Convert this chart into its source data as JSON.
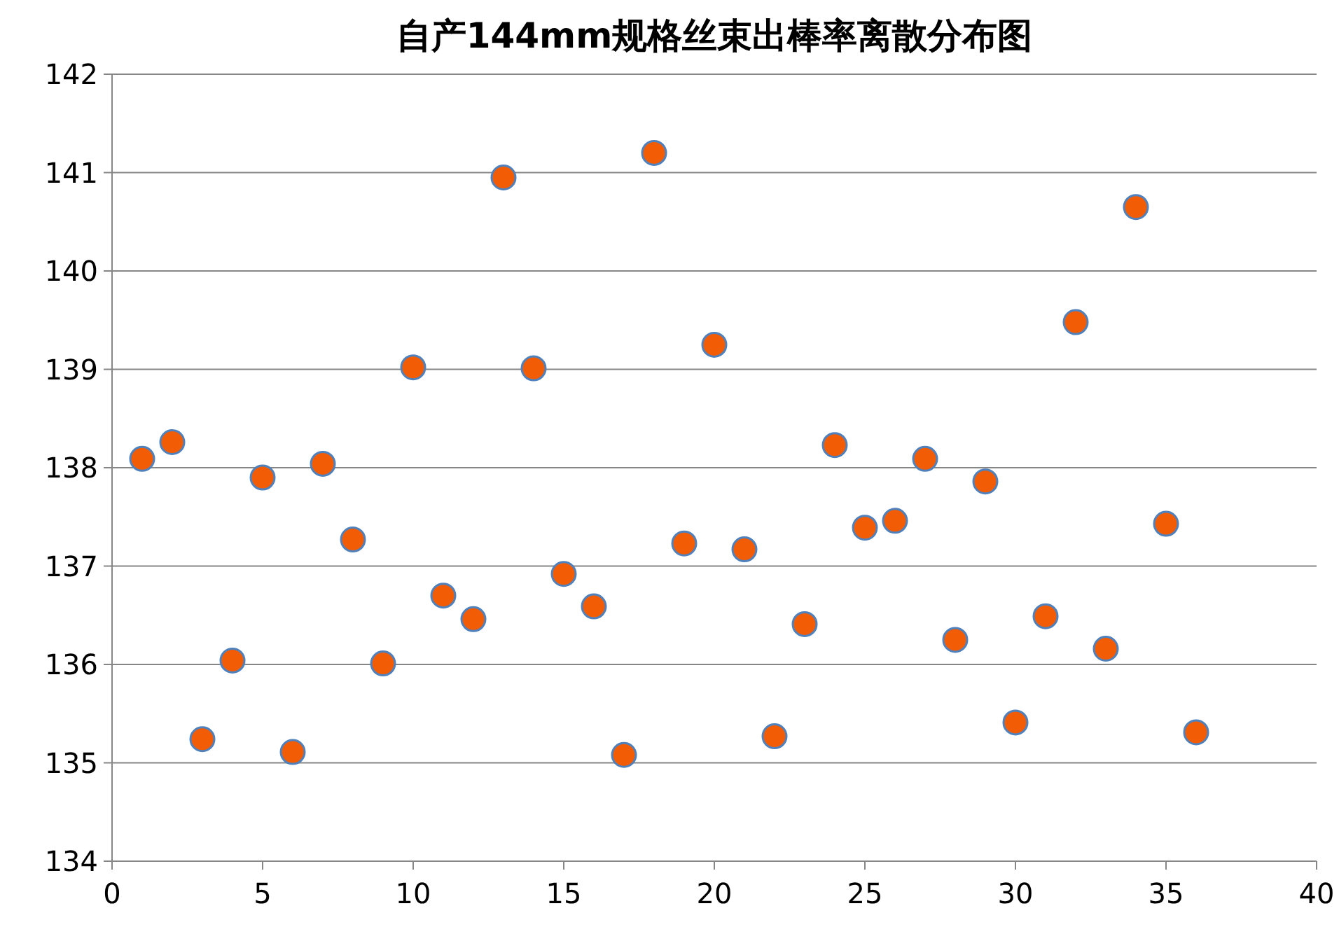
{
  "chart_data": {
    "type": "scatter",
    "title": "自产144mm规格丝束出棒率离散分布图",
    "x": [
      1,
      2,
      3,
      4,
      5,
      6,
      7,
      8,
      9,
      10,
      11,
      12,
      13,
      14,
      15,
      16,
      17,
      18,
      19,
      20,
      21,
      22,
      23,
      24,
      25,
      26,
      27,
      28,
      29,
      30,
      31,
      32,
      33,
      34,
      35,
      36
    ],
    "series": [
      {
        "color": "#f25c05",
        "values": [
          138.09,
          138.26,
          135.24,
          136.04,
          137.9,
          135.11,
          138.04,
          137.27,
          136.01,
          139.02,
          136.7,
          136.46,
          140.95,
          139.01,
          136.92,
          136.59,
          135.08,
          141.2,
          137.23,
          139.25,
          137.17,
          135.27,
          136.41,
          138.23,
          137.39,
          137.46,
          138.09,
          136.25,
          137.86,
          135.41,
          136.49,
          139.48,
          136.16,
          140.65,
          137.43,
          135.31
        ]
      }
    ],
    "xlim": [
      0,
      40
    ],
    "xticks": [
      0,
      5,
      10,
      15,
      20,
      25,
      30,
      35,
      40
    ],
    "ylim": [
      134,
      142
    ],
    "yticks": [
      134,
      135,
      136,
      137,
      138,
      139,
      140,
      141,
      142
    ],
    "grid": "y",
    "marker": "circle"
  }
}
